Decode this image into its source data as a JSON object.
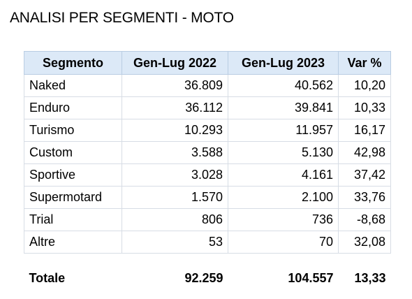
{
  "title": "ANALISI PER SEGMENTI - MOTO",
  "table": {
    "headers": [
      "Segmento",
      "Gen-Lug 2022",
      "Gen-Lug 2023",
      "Var %"
    ],
    "rows": [
      [
        "Naked",
        "36.809",
        "40.562",
        "10,20"
      ],
      [
        "Enduro",
        "36.112",
        "39.841",
        "10,33"
      ],
      [
        "Turismo",
        "10.293",
        "11.957",
        "16,17"
      ],
      [
        "Custom",
        "3.588",
        "5.130",
        "42,98"
      ],
      [
        "Sportive",
        "3.028",
        "4.161",
        "37,42"
      ],
      [
        "Supermotard",
        "1.570",
        "2.100",
        "33,76"
      ],
      [
        "Trial",
        "806",
        "736",
        "-8,68"
      ],
      [
        "Altre",
        "53",
        "70",
        "32,08"
      ]
    ],
    "total": [
      "Totale",
      "92.259",
      "104.557",
      "13,33"
    ]
  }
}
